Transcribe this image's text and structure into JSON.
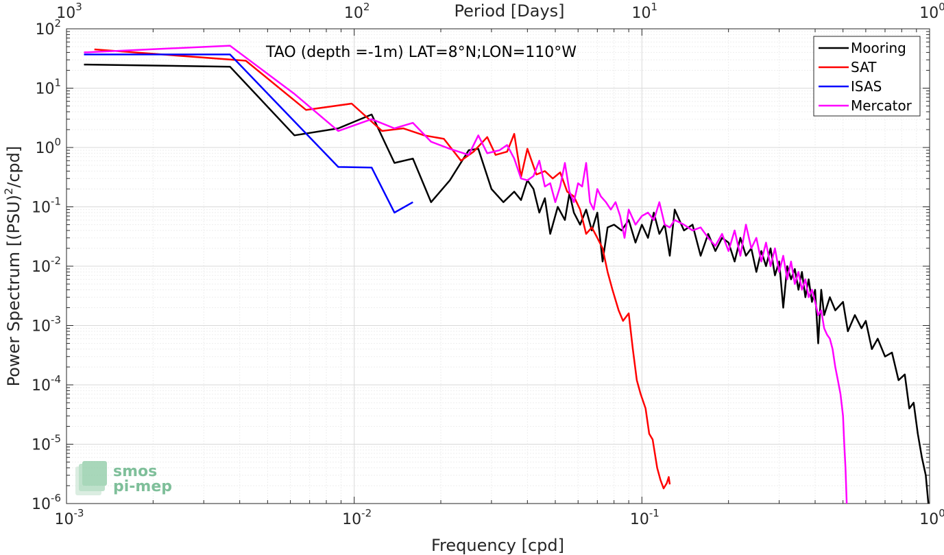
{
  "chart_data": {
    "type": "line",
    "title": "",
    "annotation": "TAO (depth =-1m) LAT=8°N;LON=110°W",
    "xlabel": "Frequency [cpd]",
    "ylabel_main": "Power Spectrum [(PSU)",
    "ylabel_sup": "2",
    "ylabel_tail": "/cpd]",
    "top_xlabel": "Period [Days]",
    "x_scale": "log",
    "y_scale": "log",
    "xlim": [
      0.001,
      1
    ],
    "ylim": [
      1e-06,
      100
    ],
    "grid": true,
    "legend_position": "top-right",
    "x_ticks": [
      {
        "value": 0.001,
        "base": "10",
        "exp": "-3"
      },
      {
        "value": 0.01,
        "base": "10",
        "exp": "-2"
      },
      {
        "value": 0.1,
        "base": "10",
        "exp": "-1"
      },
      {
        "value": 1,
        "base": "10",
        "exp": "0"
      }
    ],
    "top_ticks": [
      {
        "value": 0.001,
        "base": "10",
        "exp": "3"
      },
      {
        "value": 0.01,
        "base": "10",
        "exp": "2"
      },
      {
        "value": 0.1,
        "base": "10",
        "exp": "1"
      },
      {
        "value": 1,
        "base": "10",
        "exp": "0"
      }
    ],
    "y_ticks": [
      {
        "value": 100,
        "base": "10",
        "exp": "2"
      },
      {
        "value": 10,
        "base": "10",
        "exp": "1"
      },
      {
        "value": 1,
        "base": "10",
        "exp": "0"
      },
      {
        "value": 0.1,
        "base": "10",
        "exp": "-1"
      },
      {
        "value": 0.01,
        "base": "10",
        "exp": "-2"
      },
      {
        "value": 0.001,
        "base": "10",
        "exp": "-3"
      },
      {
        "value": 0.0001,
        "base": "10",
        "exp": "-4"
      },
      {
        "value": 1e-05,
        "base": "10",
        "exp": "-5"
      },
      {
        "value": 1e-06,
        "base": "10",
        "exp": "-6"
      }
    ],
    "series": [
      {
        "name": "Mooring",
        "color": "#000000",
        "points": [
          [
            0.00115,
            25
          ],
          [
            0.0037,
            23
          ],
          [
            0.0062,
            1.6
          ],
          [
            0.0088,
            2.1
          ],
          [
            0.0115,
            3.6
          ],
          [
            0.0138,
            0.55
          ],
          [
            0.016,
            0.65
          ],
          [
            0.0185,
            0.12
          ],
          [
            0.0215,
            0.28
          ],
          [
            0.025,
            0.9
          ],
          [
            0.027,
            0.95
          ],
          [
            0.03,
            0.2
          ],
          [
            0.033,
            0.12
          ],
          [
            0.036,
            0.18
          ],
          [
            0.038,
            0.13
          ],
          [
            0.04,
            0.28
          ],
          [
            0.042,
            0.2
          ],
          [
            0.044,
            0.08
          ],
          [
            0.046,
            0.14
          ],
          [
            0.048,
            0.035
          ],
          [
            0.051,
            0.1
          ],
          [
            0.054,
            0.06
          ],
          [
            0.056,
            0.17
          ],
          [
            0.058,
            0.08
          ],
          [
            0.061,
            0.05
          ],
          [
            0.064,
            0.09
          ],
          [
            0.067,
            0.04
          ],
          [
            0.07,
            0.08
          ],
          [
            0.073,
            0.012
          ],
          [
            0.076,
            0.045
          ],
          [
            0.08,
            0.05
          ],
          [
            0.085,
            0.04
          ],
          [
            0.09,
            0.06
          ],
          [
            0.095,
            0.025
          ],
          [
            0.1,
            0.05
          ],
          [
            0.105,
            0.03
          ],
          [
            0.11,
            0.08
          ],
          [
            0.115,
            0.035
          ],
          [
            0.12,
            0.05
          ],
          [
            0.125,
            0.015
          ],
          [
            0.13,
            0.09
          ],
          [
            0.14,
            0.04
          ],
          [
            0.15,
            0.05
          ],
          [
            0.16,
            0.015
          ],
          [
            0.17,
            0.035
          ],
          [
            0.18,
            0.018
          ],
          [
            0.19,
            0.03
          ],
          [
            0.2,
            0.025
          ],
          [
            0.21,
            0.012
          ],
          [
            0.22,
            0.03
          ],
          [
            0.23,
            0.015
          ],
          [
            0.24,
            0.02
          ],
          [
            0.25,
            0.008
          ],
          [
            0.26,
            0.018
          ],
          [
            0.27,
            0.01
          ],
          [
            0.28,
            0.02
          ],
          [
            0.29,
            0.007
          ],
          [
            0.3,
            0.012
          ],
          [
            0.31,
            0.002
          ],
          [
            0.32,
            0.01
          ],
          [
            0.33,
            0.006
          ],
          [
            0.34,
            0.009
          ],
          [
            0.35,
            0.004
          ],
          [
            0.36,
            0.008
          ],
          [
            0.37,
            0.003
          ],
          [
            0.38,
            0.006
          ],
          [
            0.39,
            0.0025
          ],
          [
            0.4,
            0.004
          ],
          [
            0.41,
            0.0005
          ],
          [
            0.42,
            0.004
          ],
          [
            0.43,
            0.0015
          ],
          [
            0.45,
            0.003
          ],
          [
            0.47,
            0.0018
          ],
          [
            0.5,
            0.0025
          ],
          [
            0.52,
            0.0008
          ],
          [
            0.55,
            0.0015
          ],
          [
            0.58,
            0.0009
          ],
          [
            0.6,
            0.0012
          ],
          [
            0.63,
            0.0004
          ],
          [
            0.66,
            0.0006
          ],
          [
            0.7,
            0.0003
          ],
          [
            0.74,
            0.00035
          ],
          [
            0.78,
            0.00012
          ],
          [
            0.82,
            0.00015
          ],
          [
            0.85,
            4e-05
          ],
          [
            0.88,
            5e-05
          ],
          [
            0.91,
            1.5e-05
          ],
          [
            0.94,
            6e-06
          ],
          [
            0.97,
            3e-06
          ],
          [
            0.99,
            1e-06
          ]
        ]
      },
      {
        "name": "SAT",
        "color": "#ff0000",
        "points": [
          [
            0.00125,
            45
          ],
          [
            0.0042,
            29
          ],
          [
            0.0068,
            4.3
          ],
          [
            0.0098,
            5.5
          ],
          [
            0.0125,
            1.9
          ],
          [
            0.0148,
            2.1
          ],
          [
            0.0175,
            1.6
          ],
          [
            0.0205,
            1.4
          ],
          [
            0.0235,
            0.6
          ],
          [
            0.026,
            0.85
          ],
          [
            0.029,
            1.5
          ],
          [
            0.031,
            0.75
          ],
          [
            0.034,
            0.85
          ],
          [
            0.036,
            1.7
          ],
          [
            0.038,
            0.32
          ],
          [
            0.04,
            0.95
          ],
          [
            0.043,
            0.35
          ],
          [
            0.046,
            0.4
          ],
          [
            0.049,
            0.3
          ],
          [
            0.052,
            0.38
          ],
          [
            0.055,
            0.18
          ],
          [
            0.058,
            0.15
          ],
          [
            0.061,
            0.09
          ],
          [
            0.064,
            0.035
          ],
          [
            0.067,
            0.045
          ],
          [
            0.07,
            0.03
          ],
          [
            0.073,
            0.02
          ],
          [
            0.076,
            0.008
          ],
          [
            0.079,
            0.004
          ],
          [
            0.083,
            0.0018
          ],
          [
            0.086,
            0.0012
          ],
          [
            0.09,
            0.0016
          ],
          [
            0.093,
            0.0004
          ],
          [
            0.096,
            0.00012
          ],
          [
            0.099,
            7e-05
          ],
          [
            0.103,
            4e-05
          ],
          [
            0.106,
            1.5e-05
          ],
          [
            0.109,
            1.2e-05
          ],
          [
            0.113,
            4e-06
          ],
          [
            0.116,
            2.5e-06
          ],
          [
            0.119,
            1.8e-06
          ],
          [
            0.122,
            2.2e-06
          ],
          [
            0.124,
            2.8e-06
          ],
          [
            0.125,
            2.1e-06
          ]
        ]
      },
      {
        "name": "ISAS",
        "color": "#0000ff",
        "points": [
          [
            0.00115,
            37
          ],
          [
            0.0037,
            37
          ],
          [
            0.0088,
            0.47
          ],
          [
            0.0115,
            0.46
          ],
          [
            0.0138,
            0.08
          ],
          [
            0.016,
            0.12
          ]
        ]
      },
      {
        "name": "Mercator",
        "color": "#ff00ff",
        "points": [
          [
            0.00115,
            40
          ],
          [
            0.0037,
            52
          ],
          [
            0.0062,
            8
          ],
          [
            0.0088,
            1.9
          ],
          [
            0.0115,
            3
          ],
          [
            0.0138,
            2.1
          ],
          [
            0.016,
            2.6
          ],
          [
            0.0185,
            1.25
          ],
          [
            0.0215,
            0.95
          ],
          [
            0.025,
            0.75
          ],
          [
            0.027,
            1.6
          ],
          [
            0.029,
            0.8
          ],
          [
            0.032,
            0.9
          ],
          [
            0.034,
            1.1
          ],
          [
            0.036,
            0.65
          ],
          [
            0.038,
            0.3
          ],
          [
            0.04,
            0.28
          ],
          [
            0.042,
            0.33
          ],
          [
            0.044,
            0.6
          ],
          [
            0.046,
            0.22
          ],
          [
            0.048,
            0.25
          ],
          [
            0.05,
            0.12
          ],
          [
            0.052,
            0.22
          ],
          [
            0.054,
            0.55
          ],
          [
            0.056,
            0.18
          ],
          [
            0.058,
            0.12
          ],
          [
            0.06,
            0.25
          ],
          [
            0.062,
            0.22
          ],
          [
            0.064,
            0.55
          ],
          [
            0.066,
            0.12
          ],
          [
            0.068,
            0.09
          ],
          [
            0.07,
            0.2
          ],
          [
            0.072,
            0.15
          ],
          [
            0.075,
            0.12
          ],
          [
            0.078,
            0.09
          ],
          [
            0.081,
            0.12
          ],
          [
            0.084,
            0.07
          ],
          [
            0.087,
            0.03
          ],
          [
            0.09,
            0.09
          ],
          [
            0.095,
            0.05
          ],
          [
            0.1,
            0.07
          ],
          [
            0.105,
            0.08
          ],
          [
            0.11,
            0.06
          ],
          [
            0.115,
            0.12
          ],
          [
            0.12,
            0.05
          ],
          [
            0.125,
            0.045
          ],
          [
            0.13,
            0.06
          ],
          [
            0.14,
            0.05
          ],
          [
            0.15,
            0.04
          ],
          [
            0.16,
            0.045
          ],
          [
            0.17,
            0.03
          ],
          [
            0.18,
            0.022
          ],
          [
            0.19,
            0.035
          ],
          [
            0.2,
            0.018
          ],
          [
            0.21,
            0.04
          ],
          [
            0.22,
            0.015
          ],
          [
            0.23,
            0.05
          ],
          [
            0.24,
            0.02
          ],
          [
            0.25,
            0.03
          ],
          [
            0.26,
            0.012
          ],
          [
            0.27,
            0.025
          ],
          [
            0.28,
            0.01
          ],
          [
            0.29,
            0.02
          ],
          [
            0.3,
            0.008
          ],
          [
            0.31,
            0.015
          ],
          [
            0.32,
            0.006
          ],
          [
            0.33,
            0.012
          ],
          [
            0.34,
            0.005
          ],
          [
            0.35,
            0.008
          ],
          [
            0.36,
            0.004
          ],
          [
            0.37,
            0.006
          ],
          [
            0.38,
            0.003
          ],
          [
            0.39,
            0.004
          ],
          [
            0.4,
            0.0025
          ],
          [
            0.41,
            0.0015
          ],
          [
            0.42,
            0.0018
          ],
          [
            0.43,
            0.0009
          ],
          [
            0.44,
            0.0007
          ],
          [
            0.45,
            0.0006
          ],
          [
            0.46,
            0.0004
          ],
          [
            0.47,
            0.0002
          ],
          [
            0.48,
            0.00012
          ],
          [
            0.49,
            7e-05
          ],
          [
            0.5,
            3e-05
          ],
          [
            0.505,
            1e-05
          ],
          [
            0.51,
            4e-06
          ],
          [
            0.515,
            1e-06
          ]
        ]
      }
    ],
    "logo": {
      "line1": "smos",
      "line2": "pi-mep"
    }
  }
}
